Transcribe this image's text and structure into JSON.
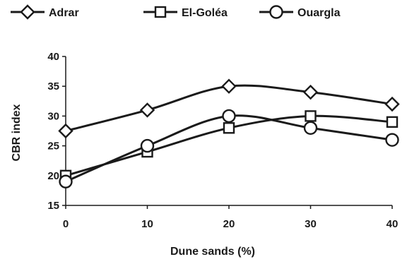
{
  "chart_data": {
    "type": "line",
    "xlabel": "Dune sands (%)",
    "ylabel": "CBR index",
    "x": [
      0,
      10,
      20,
      30,
      40
    ],
    "xlim": [
      0,
      40
    ],
    "ylim": [
      15,
      40
    ],
    "xticks": [
      "0",
      "10",
      "20",
      "30",
      "40"
    ],
    "yticks": [
      "15",
      "20",
      "25",
      "30",
      "35",
      "40"
    ],
    "grid": false,
    "legend": "top",
    "line_color": "#1a1a1a",
    "series": [
      {
        "name": "Adrar",
        "marker": "diamond",
        "values": [
          27.5,
          31,
          35,
          34,
          32
        ]
      },
      {
        "name": "El-Goléa",
        "marker": "square",
        "values": [
          20,
          24,
          28,
          30,
          29
        ]
      },
      {
        "name": "Ouargla",
        "marker": "circle",
        "values": [
          19,
          25,
          30,
          28,
          26
        ]
      }
    ]
  }
}
